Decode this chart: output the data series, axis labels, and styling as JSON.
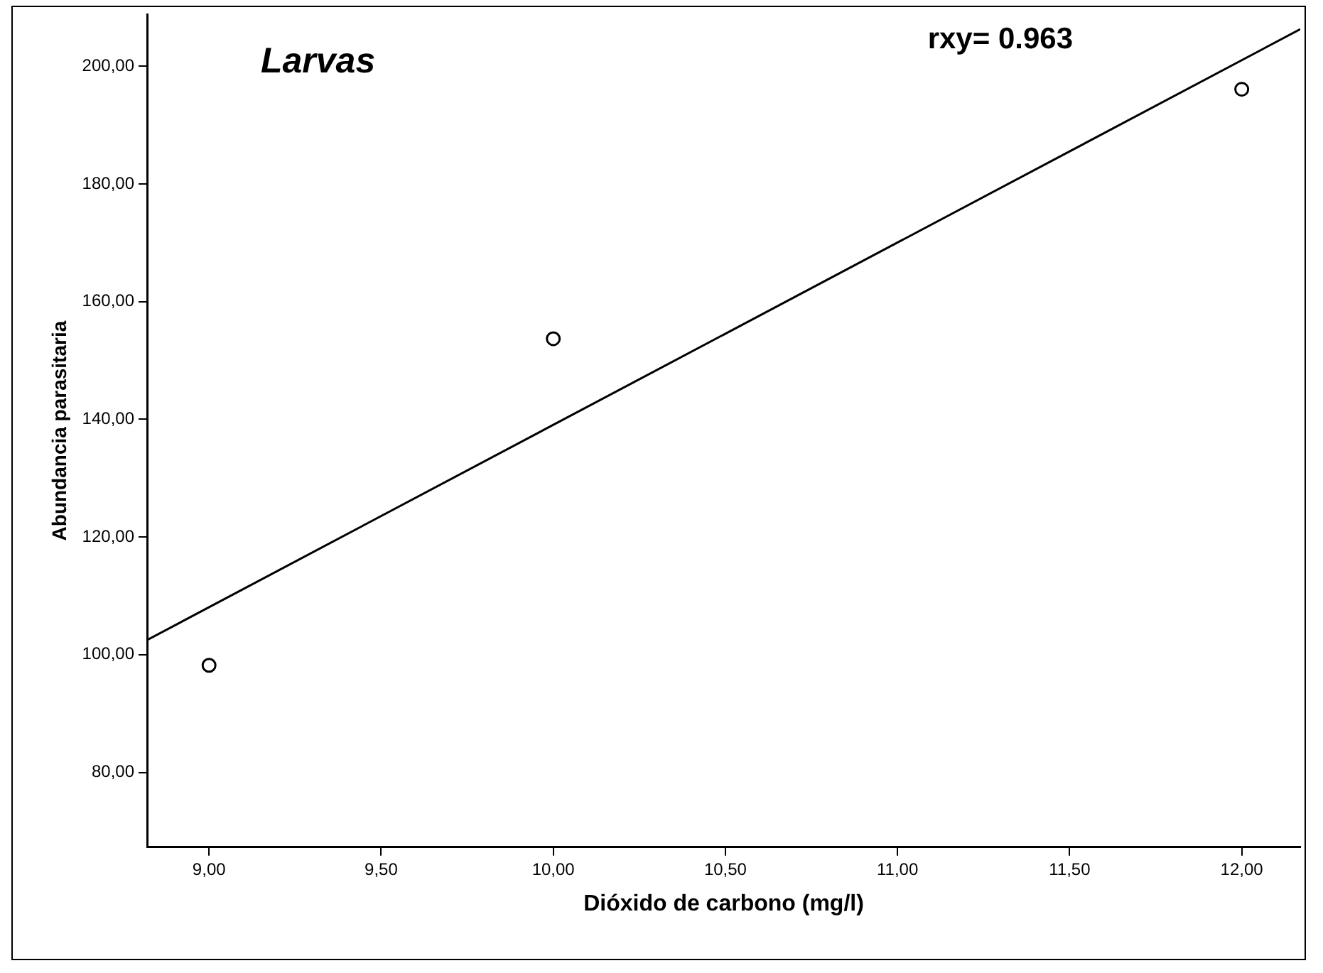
{
  "chart_data": {
    "type": "scatter",
    "title": "Larvas",
    "xlabel": "Dióxido de carbono (mg/l)",
    "ylabel": "Abundancia parasitaria",
    "annotations": [
      "rxy= 0.963"
    ],
    "series": [
      {
        "type": "scatter",
        "x": [
          9,
          10,
          12
        ],
        "values": [
          98.2,
          153.7,
          196.1
        ],
        "color": "#000000",
        "marker": "circle"
      },
      {
        "type": "line",
        "x": [
          8.82,
          12.17
        ],
        "values": [
          102.5,
          206.3
        ],
        "color": "#000000",
        "marker": "none"
      }
    ],
    "xlim": [
      8.82,
      12.17
    ],
    "ylim": [
      67.3,
      208.8
    ],
    "xticks": [
      {
        "value": 9,
        "label": "9,00"
      },
      {
        "value": 9.5,
        "label": "9,50"
      },
      {
        "value": 10,
        "label": "10,00"
      },
      {
        "value": 10.5,
        "label": "10,50"
      },
      {
        "value": 11,
        "label": "11,00"
      },
      {
        "value": 11.5,
        "label": "11,50"
      },
      {
        "value": 12,
        "label": "12,00"
      }
    ],
    "yticks": [
      {
        "value": 80,
        "label": "80,00"
      },
      {
        "value": 100,
        "label": "100,00"
      },
      {
        "value": 120,
        "label": "120,00"
      },
      {
        "value": 140,
        "label": "140,00"
      },
      {
        "value": 160,
        "label": "160,00"
      },
      {
        "value": 180,
        "label": "180,00"
      },
      {
        "value": 200,
        "label": "200,00"
      }
    ],
    "grid": false,
    "legend": false
  }
}
